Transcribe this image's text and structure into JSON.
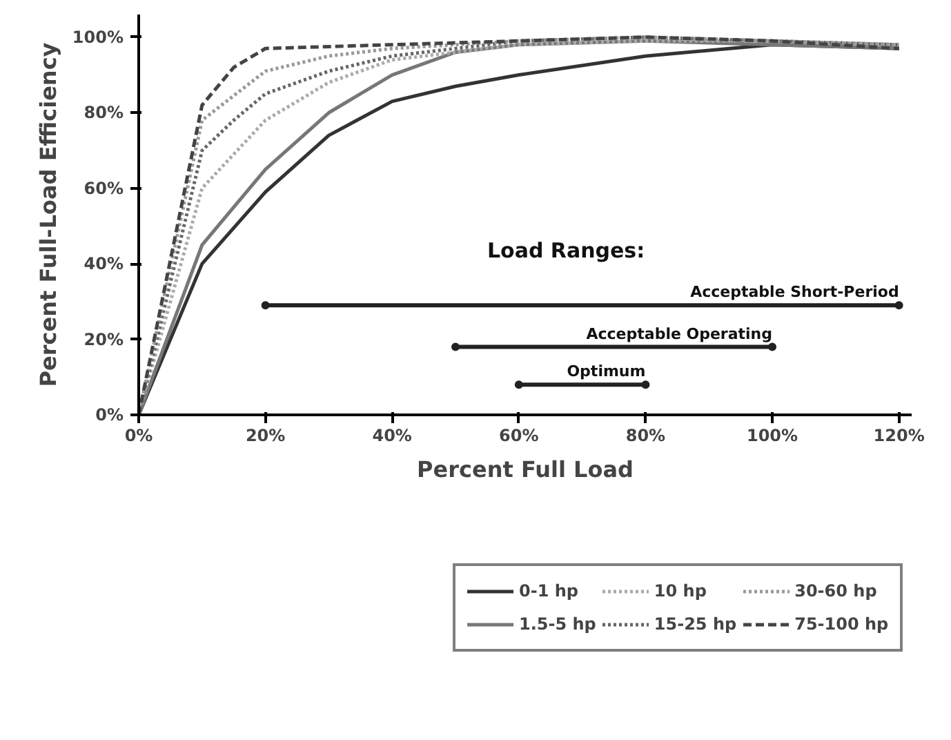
{
  "chart_data": {
    "type": "line",
    "xlabel": "Percent Full Load",
    "ylabel": "Percent Full-Load Efficiency",
    "xlim": [
      0,
      122
    ],
    "ylim": [
      0,
      106
    ],
    "xticks": [
      {
        "value": 0,
        "label": "0%"
      },
      {
        "value": 20,
        "label": "20%"
      },
      {
        "value": 40,
        "label": "40%"
      },
      {
        "value": 60,
        "label": "60%"
      },
      {
        "value": 80,
        "label": "80%"
      },
      {
        "value": 100,
        "label": "100%"
      },
      {
        "value": 120,
        "label": "120%"
      }
    ],
    "yticks": [
      {
        "value": 0,
        "label": "0%"
      },
      {
        "value": 20,
        "label": "20%"
      },
      {
        "value": 40,
        "label": "40%"
      },
      {
        "value": 60,
        "label": "60%"
      },
      {
        "value": 80,
        "label": "80%"
      },
      {
        "value": 100,
        "label": "100%"
      }
    ],
    "grid": false,
    "legend": "bottom",
    "marker": "none",
    "annotations": [
      "Load Ranges:"
    ],
    "series": [
      {
        "name": "0-1 hp",
        "color": "#333333",
        "line_style": "solid",
        "x": [
          0,
          10,
          20,
          30,
          40,
          50,
          60,
          80,
          100,
          120
        ],
        "values": [
          0,
          40,
          59,
          74,
          83,
          87,
          90,
          95,
          98,
          97
        ]
      },
      {
        "name": "1.5-5 hp",
        "color": "#777777",
        "line_style": "solid",
        "x": [
          0,
          10,
          20,
          30,
          40,
          50,
          60,
          80,
          100,
          120
        ],
        "values": [
          0,
          45,
          65,
          80,
          90,
          96,
          98,
          99,
          98,
          97
        ]
      },
      {
        "name": "10 hp",
        "color": "#aaaaaa",
        "line_style": "dotted",
        "x": [
          0,
          10,
          20,
          30,
          40,
          60,
          80,
          100,
          120
        ],
        "values": [
          0,
          60,
          78,
          88,
          94,
          98,
          99,
          99,
          98
        ]
      },
      {
        "name": "15-25 hp",
        "color": "#666666",
        "line_style": "dotted",
        "x": [
          0,
          10,
          15,
          20,
          30,
          40,
          60,
          80,
          100,
          120
        ],
        "values": [
          0,
          70,
          78,
          85,
          91,
          95,
          99,
          100,
          99,
          98
        ]
      },
      {
        "name": "30-60 hp",
        "color": "#999999",
        "line_style": "dotted",
        "x": [
          0,
          10,
          20,
          30,
          40,
          60,
          80,
          100,
          120
        ],
        "values": [
          0,
          78,
          91,
          95,
          97,
          99,
          100,
          99,
          98
        ]
      },
      {
        "name": "75-100 hp",
        "color": "#444444",
        "line_style": "dashed",
        "x": [
          0,
          10,
          15,
          20,
          40,
          60,
          80,
          100,
          120
        ],
        "values": [
          0,
          82,
          92,
          97,
          98,
          99,
          100,
          99,
          97
        ]
      },
      {
        "name": "Acceptable Short-Period",
        "color": "#222222",
        "line_style": "solid",
        "marker": "circle",
        "x": [
          20,
          120
        ],
        "values": [
          29,
          29
        ]
      },
      {
        "name": "Acceptable Operating",
        "color": "#222222",
        "line_style": "solid",
        "marker": "circle",
        "x": [
          50,
          100
        ],
        "values": [
          18,
          18
        ]
      },
      {
        "name": "Optimum",
        "color": "#222222",
        "line_style": "solid",
        "marker": "circle",
        "x": [
          60,
          80
        ],
        "values": [
          8,
          8
        ]
      }
    ]
  }
}
